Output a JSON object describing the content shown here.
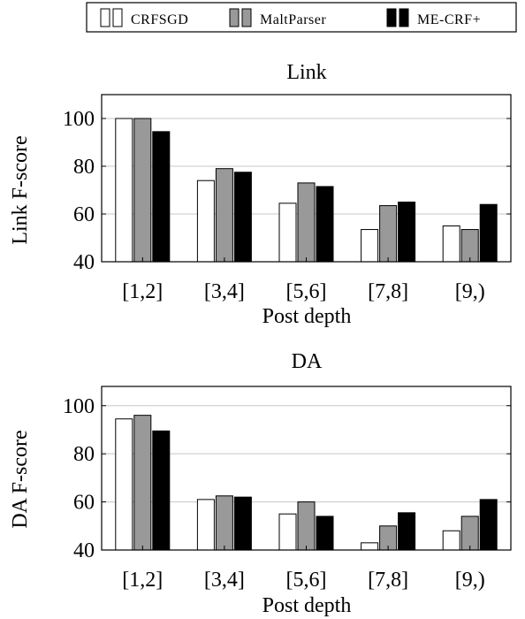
{
  "legend": {
    "entries": [
      {
        "name": "CRFSGD",
        "color": "#ffffff"
      },
      {
        "name": "MaltParser",
        "color": "#999999"
      },
      {
        "name": "ME-CRF+",
        "color": "#000000"
      }
    ],
    "placement": "top-center"
  },
  "chart_data": [
    {
      "type": "bar",
      "title": "Link",
      "xlabel": "Post depth",
      "ylabel": "Link F-score",
      "ylim": [
        40,
        110
      ],
      "yticks": [
        40,
        60,
        80,
        100
      ],
      "grid": "horizontal",
      "categories": [
        "[1,2]",
        "[3,4]",
        "[5,6]",
        "[7,8]",
        "[9,)"
      ],
      "series": [
        {
          "name": "CRFSGD",
          "values": [
            100,
            74,
            64.5,
            53.5,
            55
          ]
        },
        {
          "name": "MaltParser",
          "values": [
            100,
            79,
            73,
            63.5,
            53.5
          ]
        },
        {
          "name": "ME-CRF+",
          "values": [
            94.5,
            77.5,
            71.5,
            65,
            64
          ]
        }
      ]
    },
    {
      "type": "bar",
      "title": "DA",
      "xlabel": "Post depth",
      "ylabel": "DA F-score",
      "ylim": [
        40,
        108
      ],
      "yticks": [
        40,
        60,
        80,
        100
      ],
      "grid": "horizontal",
      "categories": [
        "[1,2]",
        "[3,4]",
        "[5,6]",
        "[7,8]",
        "[9,)"
      ],
      "series": [
        {
          "name": "CRFSGD",
          "values": [
            94.5,
            61,
            55,
            43,
            48
          ]
        },
        {
          "name": "MaltParser",
          "values": [
            96,
            62.5,
            60,
            50,
            54
          ]
        },
        {
          "name": "ME-CRF+",
          "values": [
            89.5,
            62,
            54,
            55.5,
            61
          ]
        }
      ]
    }
  ]
}
